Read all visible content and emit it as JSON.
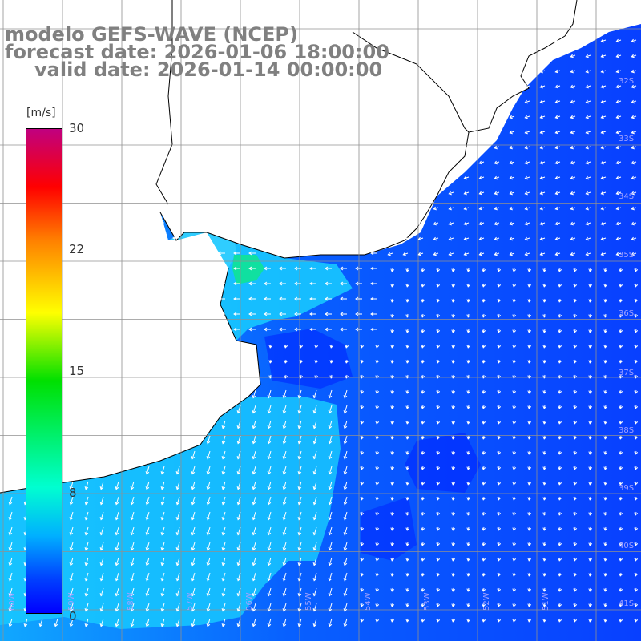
{
  "title": {
    "model": "modelo GEFS-WAVE (NCEP)",
    "forecast_date": "forecast date: 2026-01-06 18:00:00",
    "valid_date": "valid date: 2026-01-14 00:00:00"
  },
  "colorbar": {
    "unit": "[m/s]",
    "ticks": [
      "30",
      "22",
      "15",
      "8",
      "0"
    ]
  },
  "lat_labels": [
    "32S",
    "33S",
    "34S",
    "35S",
    "36S",
    "37S",
    "38S",
    "39S",
    "40S",
    "41S"
  ],
  "lon_labels": [
    "60W",
    "59W",
    "58W",
    "57W",
    "56W",
    "55W",
    "54W",
    "53W",
    "52W",
    "51W"
  ],
  "colors": {
    "land": "#ffffff",
    "deep_blue": "#0030ff",
    "mid_blue": "#0070ff",
    "light_cyan": "#00c8ff",
    "green_peak": "#00e0a0",
    "grid": "#808080"
  }
}
